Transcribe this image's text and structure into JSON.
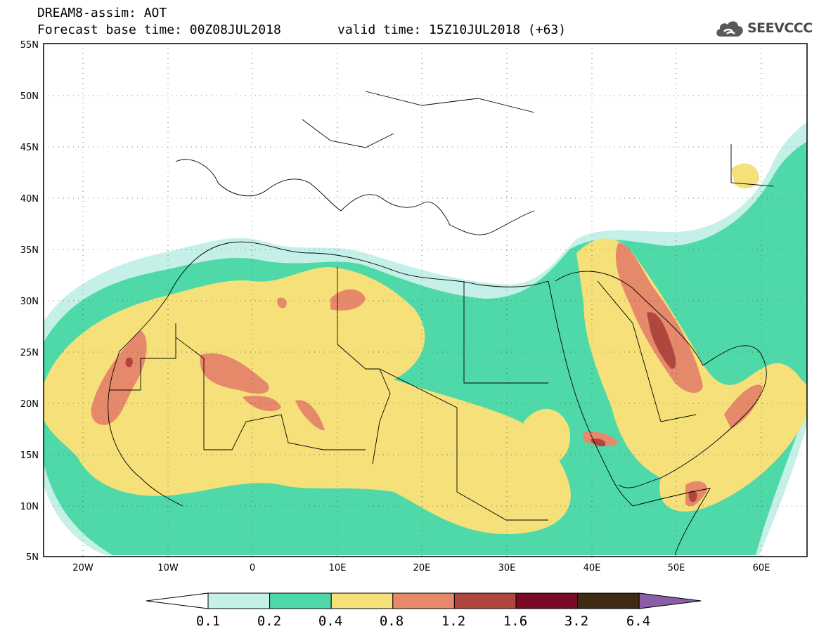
{
  "header": {
    "model_line": "DREAM8-assim: AOT",
    "base_time_line": "Forecast base time: 00Z08JUL2018",
    "valid_time_line": "valid time: 15Z10JUL2018 (+63)"
  },
  "logo": {
    "text": "SEEVCCC",
    "icon": "cloud-icon"
  },
  "map": {
    "lat_labels": [
      "55N",
      "50N",
      "45N",
      "40N",
      "35N",
      "30N",
      "25N",
      "20N",
      "15N",
      "10N",
      "5N"
    ],
    "lon_labels": [
      "20W",
      "10W",
      "0",
      "10E",
      "20E",
      "30E",
      "40E",
      "50E",
      "60E"
    ],
    "lon_range": [
      -25,
      65
    ],
    "lat_range": [
      5,
      55
    ]
  },
  "colorbar": {
    "levels": [
      "0.1",
      "0.2",
      "0.4",
      "0.8",
      "1.2",
      "1.6",
      "3.2",
      "6.4"
    ],
    "colors": [
      "#c4f0e8",
      "#4fd9a8",
      "#f5e07a",
      "#e6886a",
      "#b0473f",
      "#7b0a26",
      "#3f2a14",
      "#8a5fa8"
    ],
    "under_color": "#ffffff"
  }
}
